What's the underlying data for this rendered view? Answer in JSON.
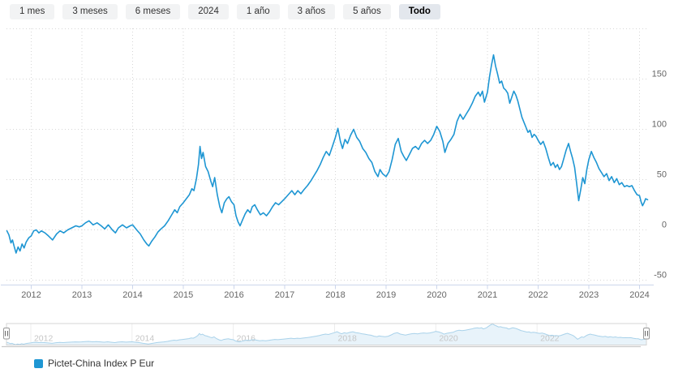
{
  "range_selector": {
    "buttons": [
      {
        "label": "1 mes",
        "selected": false
      },
      {
        "label": "3 meses",
        "selected": false
      },
      {
        "label": "6 meses",
        "selected": false
      },
      {
        "label": "2024",
        "selected": false
      },
      {
        "label": "1 año",
        "selected": false
      },
      {
        "label": "3 años",
        "selected": false
      },
      {
        "label": "5 años",
        "selected": false
      },
      {
        "label": "Todo",
        "selected": true
      }
    ]
  },
  "legend": {
    "items": [
      {
        "label": "Pictet-China Index P Eur",
        "color": "#1e96d3"
      }
    ]
  },
  "colors": {
    "series": "#1e96d3",
    "grid": "#d6d6d6",
    "axis_line": "#ccd6eb",
    "axis_label": "#666666",
    "navigator_line": "#a9d2ea",
    "navigator_fill": "#e8f3fa",
    "navigator_label": "#c6c6c6",
    "navigator_outline": "#d4d4d4",
    "scrollbar_track": "#c9c9c9",
    "handle_border": "#999999",
    "handle_fill": "#ffffff",
    "handle_stripes": "#696969"
  },
  "chart_data": {
    "type": "line",
    "title": "",
    "xlabel": "",
    "ylabel": "",
    "legend_position": "bottom-left",
    "grid": "dotted",
    "y_axis_position": "right",
    "xlim": [
      2011.52,
      2024.2
    ],
    "ylim": [
      -50,
      200
    ],
    "xticks": [
      2012,
      2013,
      2014,
      2015,
      2016,
      2017,
      2018,
      2019,
      2020,
      2021,
      2022,
      2023,
      2024
    ],
    "yticks": [
      -50,
      0,
      50,
      100,
      150
    ],
    "navigator_xticks": [
      2012,
      2014,
      2016,
      2018,
      2020,
      2022
    ],
    "series": [
      {
        "name": "Pictet-China Index P Eur",
        "x": [
          2011.52,
          2011.56,
          2011.6,
          2011.63,
          2011.66,
          2011.7,
          2011.74,
          2011.78,
          2011.82,
          2011.86,
          2011.9,
          2011.95,
          2012.0,
          2012.05,
          2012.1,
          2012.15,
          2012.2,
          2012.27,
          2012.34,
          2012.42,
          2012.5,
          2012.57,
          2012.64,
          2012.72,
          2012.8,
          2012.88,
          2012.95,
          2013.0,
          2013.07,
          2013.14,
          2013.22,
          2013.3,
          2013.38,
          2013.45,
          2013.52,
          2013.6,
          2013.66,
          2013.72,
          2013.8,
          2013.88,
          2013.95,
          2014.0,
          2014.08,
          2014.15,
          2014.22,
          2014.28,
          2014.32,
          2014.38,
          2014.44,
          2014.5,
          2014.56,
          2014.63,
          2014.7,
          2014.76,
          2014.83,
          2014.88,
          2014.93,
          2015.0,
          2015.06,
          2015.12,
          2015.17,
          2015.21,
          2015.26,
          2015.3,
          2015.33,
          2015.36,
          2015.39,
          2015.44,
          2015.49,
          2015.54,
          2015.58,
          2015.62,
          2015.67,
          2015.72,
          2015.76,
          2015.81,
          2015.86,
          2015.9,
          2015.95,
          2016.0,
          2016.04,
          2016.08,
          2016.12,
          2016.17,
          2016.22,
          2016.27,
          2016.32,
          2016.36,
          2016.41,
          2016.46,
          2016.52,
          2016.58,
          2016.64,
          2016.7,
          2016.76,
          2016.82,
          2016.88,
          2016.94,
          2017.0,
          2017.07,
          2017.14,
          2017.2,
          2017.26,
          2017.32,
          2017.38,
          2017.45,
          2017.52,
          2017.58,
          2017.64,
          2017.7,
          2017.76,
          2017.82,
          2017.88,
          2017.94,
          2018.0,
          2018.05,
          2018.1,
          2018.14,
          2018.19,
          2018.24,
          2018.3,
          2018.36,
          2018.42,
          2018.48,
          2018.54,
          2018.6,
          2018.66,
          2018.72,
          2018.78,
          2018.84,
          2018.88,
          2018.93,
          2019.0,
          2019.06,
          2019.12,
          2019.18,
          2019.24,
          2019.3,
          2019.35,
          2019.4,
          2019.46,
          2019.52,
          2019.58,
          2019.64,
          2019.7,
          2019.76,
          2019.82,
          2019.88,
          2019.94,
          2020.0,
          2020.06,
          2020.12,
          2020.16,
          2020.22,
          2020.28,
          2020.34,
          2020.4,
          2020.46,
          2020.52,
          2020.58,
          2020.64,
          2020.7,
          2020.76,
          2020.82,
          2020.86,
          2020.9,
          2020.94,
          2021.0,
          2021.04,
          2021.08,
          2021.12,
          2021.16,
          2021.2,
          2021.24,
          2021.28,
          2021.32,
          2021.36,
          2021.4,
          2021.44,
          2021.48,
          2021.52,
          2021.56,
          2021.6,
          2021.64,
          2021.68,
          2021.72,
          2021.76,
          2021.8,
          2021.84,
          2021.88,
          2021.92,
          2021.96,
          2022.0,
          2022.05,
          2022.1,
          2022.15,
          2022.2,
          2022.25,
          2022.3,
          2022.34,
          2022.38,
          2022.42,
          2022.46,
          2022.5,
          2022.55,
          2022.6,
          2022.64,
          2022.68,
          2022.72,
          2022.76,
          2022.8,
          2022.84,
          2022.88,
          2022.92,
          2022.96,
          2023.0,
          2023.05,
          2023.1,
          2023.15,
          2023.2,
          2023.25,
          2023.3,
          2023.35,
          2023.4,
          2023.45,
          2023.5,
          2023.55,
          2023.6,
          2023.65,
          2023.7,
          2023.75,
          2023.8,
          2023.85,
          2023.9,
          2023.95,
          2024.0,
          2024.03,
          2024.06,
          2024.09,
          2024.12,
          2024.16
        ],
        "y": [
          -1,
          -5,
          -13,
          -10,
          -16,
          -23,
          -17,
          -21,
          -14,
          -18,
          -12,
          -8,
          -6,
          -1,
          0,
          -3,
          -1,
          -3,
          -6,
          -10,
          -4,
          -1,
          -3,
          0,
          2,
          4,
          3,
          4,
          7,
          9,
          5,
          7,
          4,
          1,
          5,
          0,
          -3,
          2,
          5,
          2,
          4,
          5,
          0,
          -4,
          -10,
          -14,
          -16,
          -11,
          -7,
          -2,
          1,
          4,
          9,
          14,
          20,
          17,
          23,
          27,
          31,
          35,
          41,
          39,
          51,
          65,
          83,
          71,
          77,
          63,
          58,
          49,
          43,
          52,
          35,
          23,
          17,
          27,
          31,
          33,
          28,
          25,
          14,
          8,
          4,
          10,
          16,
          20,
          17,
          23,
          25,
          20,
          15,
          17,
          14,
          18,
          23,
          27,
          25,
          28,
          31,
          35,
          39,
          35,
          39,
          36,
          40,
          44,
          49,
          54,
          59,
          65,
          72,
          78,
          74,
          83,
          92,
          101,
          88,
          81,
          90,
          86,
          94,
          100,
          92,
          88,
          81,
          77,
          71,
          67,
          58,
          53,
          60,
          56,
          53,
          58,
          70,
          85,
          91,
          78,
          73,
          69,
          75,
          81,
          83,
          80,
          86,
          89,
          86,
          89,
          95,
          103,
          98,
          88,
          77,
          86,
          90,
          95,
          108,
          115,
          110,
          115,
          120,
          126,
          133,
          137,
          133,
          138,
          127,
          137,
          152,
          164,
          174,
          163,
          155,
          146,
          148,
          141,
          139,
          136,
          126,
          132,
          138,
          134,
          128,
          120,
          112,
          107,
          102,
          97,
          99,
          92,
          95,
          93,
          89,
          85,
          88,
          81,
          72,
          64,
          67,
          62,
          65,
          60,
          63,
          70,
          79,
          86,
          78,
          71,
          62,
          46,
          29,
          40,
          52,
          46,
          60,
          70,
          78,
          72,
          67,
          61,
          57,
          53,
          56,
          49,
          53,
          47,
          51,
          45,
          47,
          43,
          44,
          43,
          44,
          39,
          35,
          34,
          28,
          24,
          27,
          31,
          30
        ]
      }
    ]
  }
}
